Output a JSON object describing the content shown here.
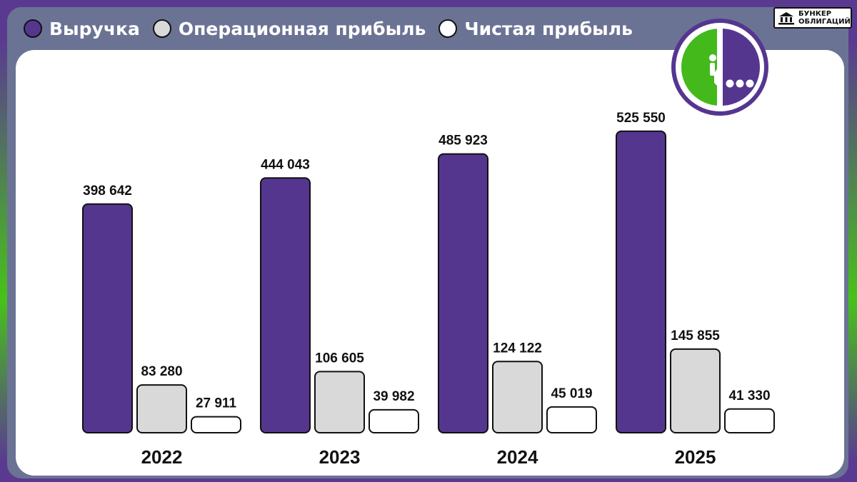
{
  "legend": [
    {
      "label": "Выручка",
      "color": "#55368f"
    },
    {
      "label": "Операционная прибыль",
      "color": "#d9d9d9"
    },
    {
      "label": "Чистая прибыль",
      "color": "#ffffff"
    }
  ],
  "badge": {
    "line1": "БУНКЕР",
    "line2": "ОБЛИГАЦИЙ"
  },
  "logo": {
    "name": "megafon-logo",
    "green": "#43b91c",
    "purple": "#55368f"
  },
  "chart_data": {
    "type": "bar",
    "title": "",
    "xlabel": "",
    "ylabel": "",
    "categories": [
      "2022",
      "2023",
      "2024",
      "2025"
    ],
    "series": [
      {
        "name": "Выручка",
        "color": "#55368f",
        "values": [
          398642,
          444043,
          485923,
          525550
        ],
        "labels": [
          "398 642",
          "444 043",
          "485 923",
          "525 550"
        ]
      },
      {
        "name": "Операционная прибыль",
        "color": "#d9d9d9",
        "values": [
          83280,
          106605,
          124122,
          145855
        ],
        "labels": [
          "83 280",
          "106 605",
          "124 122",
          "145 855"
        ]
      },
      {
        "name": "Чистая прибыль",
        "color": "#ffffff",
        "values": [
          27911,
          39982,
          45019,
          41330
        ],
        "labels": [
          "27 911",
          "39 982",
          "45 019",
          "41 330"
        ]
      }
    ],
    "ylim": [
      0,
      600000
    ],
    "grid": false,
    "legend_position": "top-left"
  }
}
